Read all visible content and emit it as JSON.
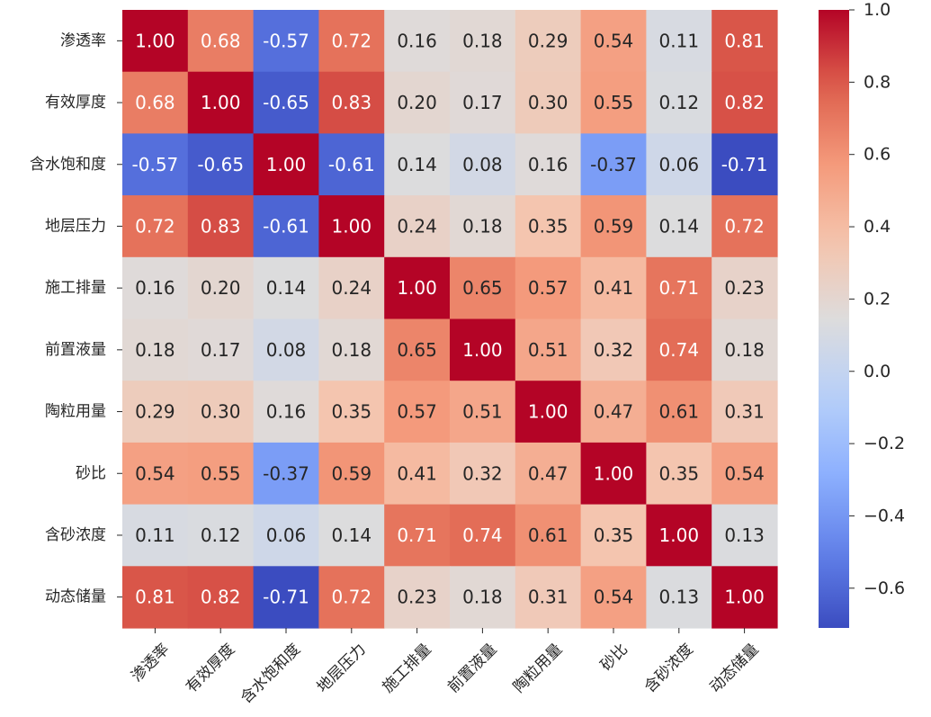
{
  "chart_data": {
    "type": "heatmap",
    "title": "",
    "xlabel": "",
    "ylabel": "",
    "labels": [
      "渗透率",
      "有效厚度",
      "含水饱和度",
      "地层压力",
      "施工排量",
      "前置液量",
      "陶粒用量",
      "砂比",
      "含砂浓度",
      "动态储量"
    ],
    "matrix": [
      [
        1.0,
        0.68,
        -0.57,
        0.72,
        0.16,
        0.18,
        0.29,
        0.54,
        0.11,
        0.81
      ],
      [
        0.68,
        1.0,
        -0.65,
        0.83,
        0.2,
        0.17,
        0.3,
        0.55,
        0.12,
        0.82
      ],
      [
        -0.57,
        -0.65,
        1.0,
        -0.61,
        0.14,
        0.08,
        0.16,
        -0.37,
        0.06,
        -0.71
      ],
      [
        0.72,
        0.83,
        -0.61,
        1.0,
        0.24,
        0.18,
        0.35,
        0.59,
        0.14,
        0.72
      ],
      [
        0.16,
        0.2,
        0.14,
        0.24,
        1.0,
        0.65,
        0.57,
        0.41,
        0.71,
        0.23
      ],
      [
        0.18,
        0.17,
        0.08,
        0.18,
        0.65,
        1.0,
        0.51,
        0.32,
        0.74,
        0.18
      ],
      [
        0.29,
        0.3,
        0.16,
        0.35,
        0.57,
        0.51,
        1.0,
        0.47,
        0.61,
        0.31
      ],
      [
        0.54,
        0.55,
        -0.37,
        0.59,
        0.41,
        0.32,
        0.47,
        1.0,
        0.35,
        0.54
      ],
      [
        0.11,
        0.12,
        0.06,
        0.14,
        0.71,
        0.74,
        0.61,
        0.35,
        1.0,
        0.13
      ],
      [
        0.81,
        0.82,
        -0.71,
        0.72,
        0.23,
        0.18,
        0.31,
        0.54,
        0.13,
        1.0
      ]
    ],
    "colormap": "coolwarm",
    "vmin": -0.71,
    "vmax": 1.0,
    "colorbar_ticks": [
      1.0,
      0.8,
      0.6,
      0.4,
      0.2,
      0.0,
      -0.2,
      -0.4,
      -0.6
    ],
    "colorbar_tick_labels": [
      "1.0",
      "0.8",
      "0.6",
      "0.4",
      "0.2",
      "0.0",
      "−0.2",
      "−0.4",
      "−0.6"
    ],
    "annotation_format": "0.00"
  }
}
